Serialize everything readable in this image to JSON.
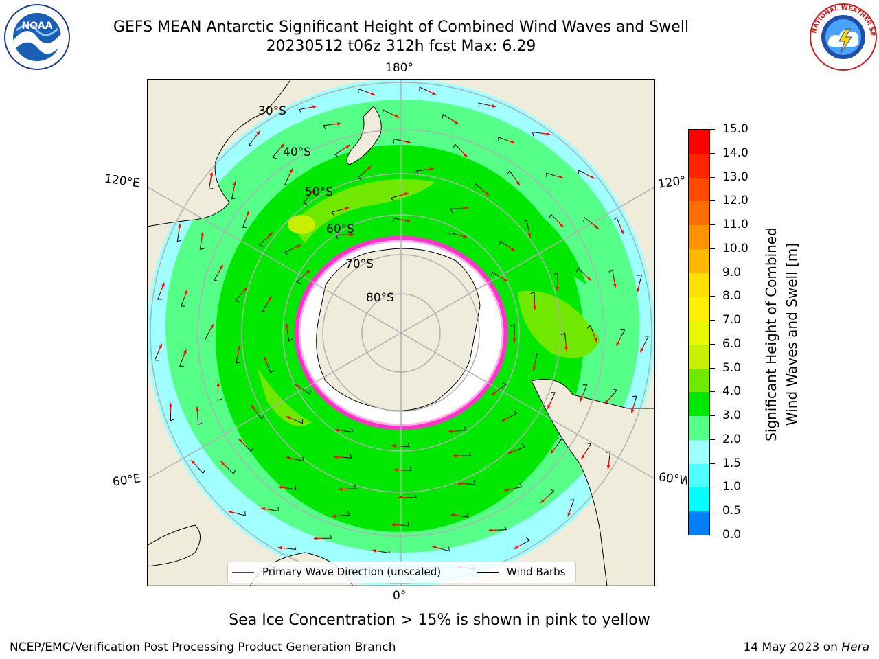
{
  "header": {
    "title_line1": "GEFS MEAN Antarctic Significant Height of Combined Wind Waves and Swell",
    "title_line2": "20230512 t06z 312h fcst   Max: 6.29"
  },
  "logos": {
    "left": {
      "text": "NOAA",
      "icon": "noaa-logo-icon"
    },
    "right": {
      "text": "NATIONAL WEATHER SERVICE",
      "icon": "nws-logo-icon"
    }
  },
  "map": {
    "projection": "south-polar-stereographic",
    "longitude_labels": {
      "top": "180°",
      "bottom": "0°",
      "left_upper": "120°E",
      "left_lower": "60°E",
      "right_upper": "120°W",
      "right_lower": "60°W"
    },
    "latitude_labels": [
      "30°S",
      "40°S",
      "50°S",
      "60°S",
      "70°S",
      "80°S"
    ],
    "colors": {
      "land": "#efecdc",
      "grid": "#b0b0b0",
      "coast": "#000000",
      "wave_arrow": "#ff0000",
      "sea_ice_edge": "#ff33cc",
      "sea_ice_interior": "#ffffff"
    }
  },
  "legend": {
    "items": [
      {
        "label": "Primary Wave Direction (unscaled)",
        "color": "#ff0000"
      },
      {
        "label": "Wind Barbs",
        "color": "#000000"
      }
    ]
  },
  "colorbar": {
    "title": "Significant Height of Combined Wind Waves and Swell [m]",
    "title_line1": "Significant Height of Combined",
    "title_line2": "Wind Waves and Swell [m]",
    "ticks": [
      "15.0",
      "14.0",
      "13.0",
      "12.0",
      "11.0",
      "10.0",
      "9.0",
      "8.0",
      "7.0",
      "6.0",
      "5.0",
      "4.0",
      "3.0",
      "2.0",
      "1.5",
      "1.0",
      "0.5",
      "0.0"
    ],
    "colors": [
      "#ff0000",
      "#ff2400",
      "#ff4a00",
      "#ff6e00",
      "#ff9200",
      "#ffb800",
      "#ffe000",
      "#fff200",
      "#e8f800",
      "#c8ef00",
      "#70e800",
      "#00e800",
      "#55ff88",
      "#a0ffff",
      "#50ffff",
      "#00ffff",
      "#0080ff",
      "#0000ff"
    ]
  },
  "note": "Sea Ice Concentration > 15% is shown in pink to yellow",
  "footer": {
    "left": "NCEP/EMC/Verification Post Processing Product Generation Branch",
    "right_date": "14 May 2023 on ",
    "right_host": "Hera"
  }
}
